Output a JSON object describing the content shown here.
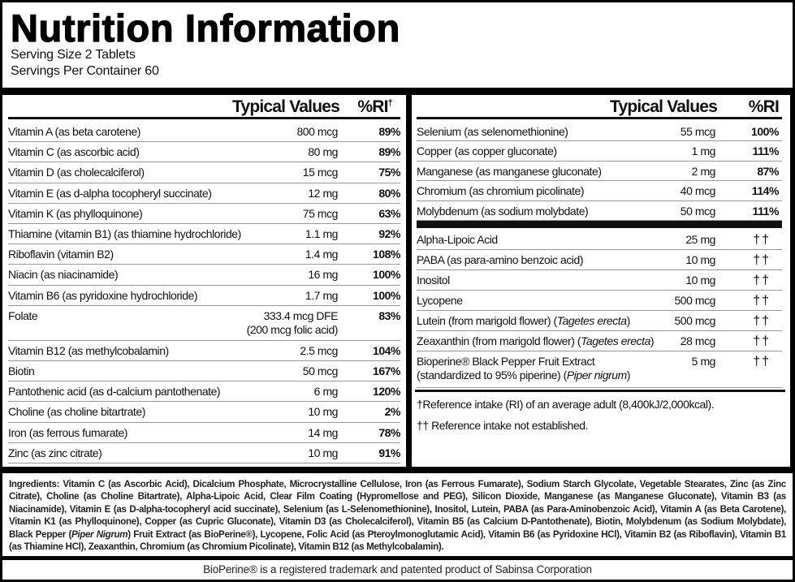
{
  "header": {
    "title": "Nutrition Information",
    "serving_size": "Serving Size 2 Tablets",
    "servings_per_container": "Servings Per Container 60"
  },
  "left_table": {
    "col_values": "Typical Values",
    "col_ri": "%RI",
    "col_ri_mark": "†",
    "rows": [
      {
        "name": "Vitamin A (as beta carotene)",
        "value": "800 mcg",
        "ri": "89%"
      },
      {
        "name": "Vitamin C (as ascorbic acid)",
        "value": "80 mg",
        "ri": "89%"
      },
      {
        "name": "Vitamin D (as cholecalciferol)",
        "value": "15 mcg",
        "ri": "75%"
      },
      {
        "name": "Vitamin E (as d-alpha tocopheryl succinate)",
        "value": "12 mg",
        "ri": "80%"
      },
      {
        "name": "Vitamin K (as phylloquinone)",
        "value": "75 mcg",
        "ri": "63%"
      },
      {
        "name": "Thiamine (vitamin B1) (as thiamine hydrochloride)",
        "value": "1.1 mg",
        "ri": "92%"
      },
      {
        "name": "Riboflavin (vitamin B2)",
        "value": "1.4 mg",
        "ri": "108%"
      },
      {
        "name": "Niacin (as niacinamide)",
        "value": "16 mg",
        "ri": "100%"
      },
      {
        "name": "Vitamin B6 (as pyridoxine hydrochloride)",
        "value": "1.7 mg",
        "ri": "100%"
      },
      {
        "name": "Folate",
        "value": "333.4 mcg DFE",
        "value2": "(200 mcg folic acid)",
        "ri": "83%"
      },
      {
        "name": "Vitamin B12 (as methylcobalamin)",
        "value": "2.5 mcg",
        "ri": "104%"
      },
      {
        "name": "Biotin",
        "value": "50 mcg",
        "ri": "167%"
      },
      {
        "name": "Pantothenic acid (as d-calcium pantothenate)",
        "value": "6 mg",
        "ri": "120%"
      },
      {
        "name": "Choline (as choline bitartrate)",
        "value": "10 mg",
        "ri": "2%"
      },
      {
        "name": "Iron (as ferrous fumarate)",
        "value": "14 mg",
        "ri": "78%"
      },
      {
        "name": "Zinc (as zinc citrate)",
        "value": "10 mg",
        "ri": "91%"
      }
    ]
  },
  "right_table": {
    "col_values": "Typical Values",
    "col_ri": "%RI",
    "minerals": [
      {
        "name": "Selenium (as selenomethionine)",
        "value": "55 mcg",
        "ri": "100%"
      },
      {
        "name": "Copper (as copper gluconate)",
        "value": "1 mg",
        "ri": "111%"
      },
      {
        "name": "Manganese (as manganese gluconate)",
        "value": "2 mg",
        "ri": "87%"
      },
      {
        "name": "Chromium (as chromium picolinate)",
        "value": "40 mcg",
        "ri": "114%"
      },
      {
        "name": "Molybdenum (as sodium molybdate)",
        "value": "50 mcg",
        "ri": "111%"
      }
    ],
    "others": [
      {
        "name": "Alpha-Lipoic Acid",
        "value": "25 mg",
        "ri": "††"
      },
      {
        "name": "PABA (as para-amino benzoic acid)",
        "value": "10 mg",
        "ri": "††"
      },
      {
        "name": "Inositol",
        "value": "10 mg",
        "ri": "††"
      },
      {
        "name": "Lycopene",
        "value": "500 mcg",
        "ri": "††"
      },
      {
        "name": "Lutein (from marigold flower) (",
        "italic": "Tagetes erecta",
        "after": ")",
        "value": "500 mcg",
        "ri": "††"
      },
      {
        "name": "Zeaxanthin (from marigold flower) (",
        "italic": "Tagetes erecta",
        "after": ")",
        "value": "28 mcg",
        "ri": "††"
      },
      {
        "name": "Bioperine® Black Pepper Fruit Extract",
        "name2": "(standardized to 95% piperine) (",
        "italic": "Piper nigrum",
        "after": ")",
        "value": "5 mg",
        "ri": "††"
      }
    ],
    "footnote_1": "†Reference intake (RI) of an average adult (8,400kJ/2,000kcal).",
    "footnote_2": "†† Reference intake not established."
  },
  "ingredients": {
    "text_1": "Ingredients: Vitamin C (as Ascorbic Acid), Dicalcium Phosphate, Microcrystalline Cellulose, Iron (as Ferrous Fumarate), Sodium Starch Glycolate, Vegetable Stearates, Zinc (as Zinc Citrate), Choline (as Choline Bitartrate), Alpha-Lipoic Acid, Clear Film Coating (Hypromellose and PEG), Silicon Dioxide, Manganese (as Manganese Gluconate), Vitamin B3 (as Niacinamide), Vitamin E (as D-alpha-tocopheryl acid succinate), Selenium (as L-Selenomethionine), Inositol, Lutein, PABA (as Para-Aminobenzoic Acid), Vitamin A (as Beta Carotene), Vitamin K1 (as Phylloquinone), Copper (as Cupric Gluconate), Vitamin D3 (as Cholecalciferol), Vitamin B5 (as Calcium D-Pantothenate), Biotin, Molybdenum (as Sodium Molybdate), Black Pepper (",
    "italic": "Piper Nigrum",
    "text_2": ") Fruit Extract (as BioPerine®), Lycopene, Folic Acid (as Pteroylmonoglutamic Acid), Vitamin B6 (as Pyridoxine HCl), Vitamin B2 (as Riboflavin), Vitamin B1 (as Thiamine HCl), Zeaxanthin, Chromium (as Chromium Picolinate), Vitamin B12 (as Methylcobalamin)."
  },
  "footer": {
    "trademark": "BioPerine® is a registered trademark and patented product of Sabinsa Corporation"
  }
}
